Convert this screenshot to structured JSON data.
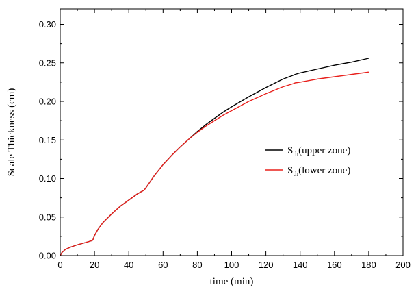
{
  "chart_data": {
    "type": "line",
    "xlabel": "time (min)",
    "ylabel": "Scale Thickness (cm)",
    "xlim": [
      0,
      200
    ],
    "ylim": [
      0,
      0.32
    ],
    "x_ticks": [
      0,
      20,
      40,
      60,
      80,
      100,
      120,
      140,
      160,
      180,
      200
    ],
    "x_tick_labels": [
      "0",
      "20",
      "40",
      "60",
      "80",
      "100",
      "120",
      "140",
      "160",
      "180",
      "200"
    ],
    "y_ticks": [
      0,
      0.05,
      0.1,
      0.15,
      0.2,
      0.25,
      0.3
    ],
    "y_tick_labels": [
      "0.00",
      "0.05",
      "0.10",
      "0.15",
      "0.20",
      "0.25",
      "0.30"
    ],
    "grid": false,
    "legend_position": "center-right",
    "series": [
      {
        "name": "S_th(upper zone)",
        "legend_main": "S",
        "legend_sub": "th",
        "legend_rest": "(upper zone)",
        "color": "#000000",
        "x": [
          0,
          1,
          3,
          6,
          10,
          15,
          18,
          19,
          20,
          22,
          25,
          30,
          35,
          40,
          45,
          49,
          50,
          55,
          60,
          65,
          70,
          75,
          80,
          85,
          90,
          95,
          100,
          110,
          120,
          130,
          136,
          137,
          140,
          150,
          160,
          170,
          180
        ],
        "y": [
          0.0,
          0.004,
          0.008,
          0.011,
          0.014,
          0.017,
          0.019,
          0.02,
          0.026,
          0.034,
          0.043,
          0.054,
          0.064,
          0.072,
          0.08,
          0.085,
          0.088,
          0.104,
          0.118,
          0.13,
          0.141,
          0.151,
          0.161,
          0.17,
          0.178,
          0.186,
          0.193,
          0.206,
          0.218,
          0.229,
          0.234,
          0.235,
          0.237,
          0.242,
          0.247,
          0.251,
          0.256
        ]
      },
      {
        "name": "S_th(lower zone)",
        "legend_main": "S",
        "legend_sub": "th",
        "legend_rest": "(lower zone)",
        "color": "#e8201c",
        "x": [
          0,
          1,
          3,
          6,
          10,
          15,
          18,
          19,
          20,
          22,
          25,
          30,
          35,
          40,
          45,
          49,
          50,
          55,
          60,
          65,
          70,
          75,
          80,
          85,
          90,
          95,
          100,
          110,
          120,
          130,
          136,
          137,
          140,
          150,
          160,
          170,
          180
        ],
        "y": [
          0.0,
          0.004,
          0.008,
          0.011,
          0.014,
          0.017,
          0.019,
          0.02,
          0.026,
          0.034,
          0.043,
          0.054,
          0.064,
          0.072,
          0.08,
          0.085,
          0.088,
          0.104,
          0.118,
          0.13,
          0.141,
          0.151,
          0.16,
          0.168,
          0.175,
          0.182,
          0.188,
          0.2,
          0.21,
          0.219,
          0.223,
          0.224,
          0.225,
          0.229,
          0.232,
          0.235,
          0.238
        ]
      }
    ]
  }
}
